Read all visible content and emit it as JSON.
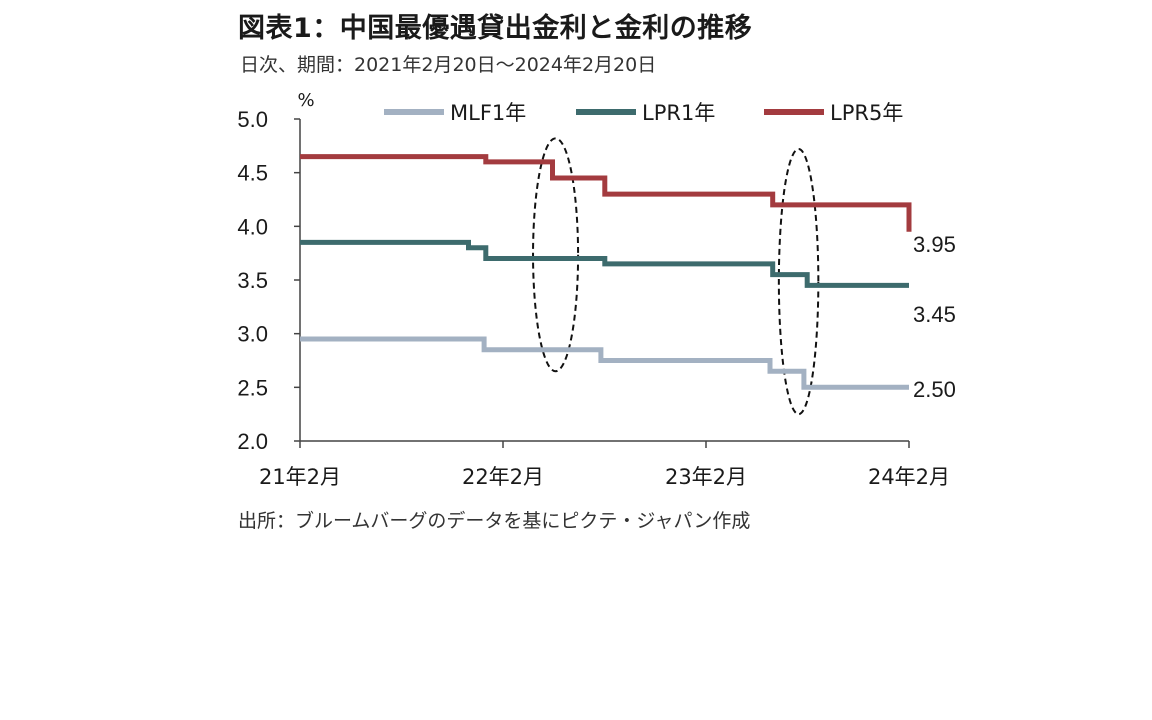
{
  "header": {
    "title": "図表1：中国最優遇貸出金利と金利の推移",
    "subtitle": "日次、期間：2021年2月20日～2024年2月20日"
  },
  "footer": {
    "source": "出所：ブルームバーグのデータを基にピクテ・ジャパン作成"
  },
  "chart_data": {
    "type": "line",
    "unit_label": "%",
    "x_ticks": [
      "21年2月",
      "22年2月",
      "23年2月",
      "24年2月"
    ],
    "x_range": [
      "2021-02-20",
      "2024-02-20"
    ],
    "ylim": [
      2.0,
      5.0
    ],
    "y_ticks": [
      "5.0",
      "4.5",
      "4.0",
      "3.5",
      "3.0",
      "2.5",
      "2.0"
    ],
    "grid": false,
    "legend_position": "top",
    "series": [
      {
        "name": "MLF1年",
        "color": "#a3b1c2",
        "steps": [
          {
            "date": "2021-02-20",
            "value": 2.95
          },
          {
            "date": "2022-01-17",
            "value": 2.85
          },
          {
            "date": "2022-08-15",
            "value": 2.75
          },
          {
            "date": "2023-06-15",
            "value": 2.65
          },
          {
            "date": "2023-08-15",
            "value": 2.5
          },
          {
            "date": "2024-02-20",
            "value": 2.5
          }
        ]
      },
      {
        "name": "LPR1年",
        "color": "#3d6b6d",
        "steps": [
          {
            "date": "2021-02-20",
            "value": 3.85
          },
          {
            "date": "2021-12-20",
            "value": 3.8
          },
          {
            "date": "2022-01-20",
            "value": 3.7
          },
          {
            "date": "2022-08-22",
            "value": 3.65
          },
          {
            "date": "2023-06-20",
            "value": 3.55
          },
          {
            "date": "2023-08-21",
            "value": 3.45
          },
          {
            "date": "2024-02-20",
            "value": 3.45
          }
        ]
      },
      {
        "name": "LPR5年",
        "color": "#a33b3f",
        "steps": [
          {
            "date": "2021-02-20",
            "value": 4.65
          },
          {
            "date": "2022-01-20",
            "value": 4.6
          },
          {
            "date": "2022-05-20",
            "value": 4.45
          },
          {
            "date": "2022-08-22",
            "value": 4.3
          },
          {
            "date": "2023-06-20",
            "value": 4.2
          },
          {
            "date": "2024-02-19",
            "value": 4.2
          },
          {
            "date": "2024-02-20",
            "value": 3.95
          }
        ]
      }
    ],
    "end_labels": [
      {
        "series": "LPR5年",
        "text": "3.95"
      },
      {
        "series": "LPR1年",
        "text": "3.45"
      },
      {
        "series": "MLF1年",
        "text": "2.50"
      }
    ],
    "highlights": [
      {
        "start": "2022-04-15",
        "end": "2022-07-05",
        "ylim": [
          2.65,
          4.82
        ]
      },
      {
        "start": "2023-07-01",
        "end": "2023-09-10",
        "ylim": [
          2.25,
          4.72
        ]
      }
    ]
  }
}
